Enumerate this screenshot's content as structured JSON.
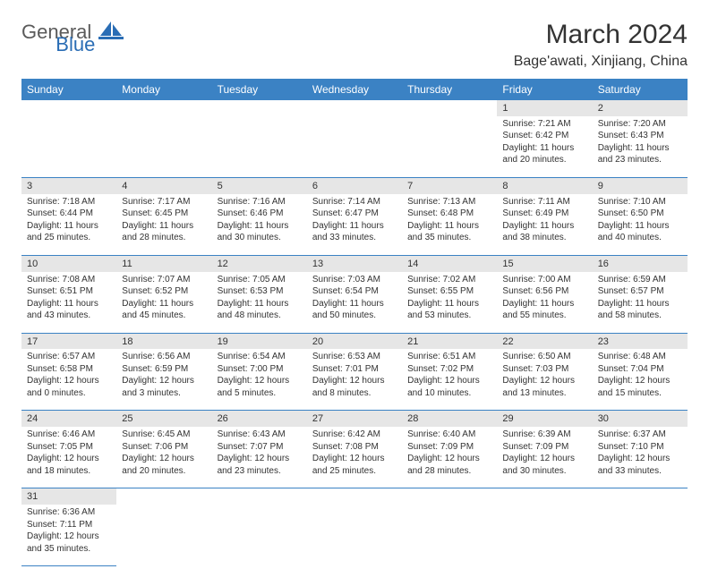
{
  "logo": {
    "text1": "General",
    "text2": "Blue"
  },
  "title": "March 2024",
  "location": "Bage'awati, Xinjiang, China",
  "colors": {
    "header_bg": "#3b82c4",
    "header_text": "#ffffff",
    "daynum_bg": "#e6e6e6",
    "border": "#3b82c4",
    "logo_gray": "#5a5a5a",
    "logo_blue": "#2a6db5"
  },
  "fonts": {
    "title_size": 30,
    "location_size": 16,
    "header_size": 12,
    "cell_size": 10
  },
  "weekdays": [
    "Sunday",
    "Monday",
    "Tuesday",
    "Wednesday",
    "Thursday",
    "Friday",
    "Saturday"
  ],
  "weeks": [
    [
      null,
      null,
      null,
      null,
      null,
      {
        "day": "1",
        "sunrise": "7:21 AM",
        "sunset": "6:42 PM",
        "daylight": "11 hours and 20 minutes."
      },
      {
        "day": "2",
        "sunrise": "7:20 AM",
        "sunset": "6:43 PM",
        "daylight": "11 hours and 23 minutes."
      }
    ],
    [
      {
        "day": "3",
        "sunrise": "7:18 AM",
        "sunset": "6:44 PM",
        "daylight": "11 hours and 25 minutes."
      },
      {
        "day": "4",
        "sunrise": "7:17 AM",
        "sunset": "6:45 PM",
        "daylight": "11 hours and 28 minutes."
      },
      {
        "day": "5",
        "sunrise": "7:16 AM",
        "sunset": "6:46 PM",
        "daylight": "11 hours and 30 minutes."
      },
      {
        "day": "6",
        "sunrise": "7:14 AM",
        "sunset": "6:47 PM",
        "daylight": "11 hours and 33 minutes."
      },
      {
        "day": "7",
        "sunrise": "7:13 AM",
        "sunset": "6:48 PM",
        "daylight": "11 hours and 35 minutes."
      },
      {
        "day": "8",
        "sunrise": "7:11 AM",
        "sunset": "6:49 PM",
        "daylight": "11 hours and 38 minutes."
      },
      {
        "day": "9",
        "sunrise": "7:10 AM",
        "sunset": "6:50 PM",
        "daylight": "11 hours and 40 minutes."
      }
    ],
    [
      {
        "day": "10",
        "sunrise": "7:08 AM",
        "sunset": "6:51 PM",
        "daylight": "11 hours and 43 minutes."
      },
      {
        "day": "11",
        "sunrise": "7:07 AM",
        "sunset": "6:52 PM",
        "daylight": "11 hours and 45 minutes."
      },
      {
        "day": "12",
        "sunrise": "7:05 AM",
        "sunset": "6:53 PM",
        "daylight": "11 hours and 48 minutes."
      },
      {
        "day": "13",
        "sunrise": "7:03 AM",
        "sunset": "6:54 PM",
        "daylight": "11 hours and 50 minutes."
      },
      {
        "day": "14",
        "sunrise": "7:02 AM",
        "sunset": "6:55 PM",
        "daylight": "11 hours and 53 minutes."
      },
      {
        "day": "15",
        "sunrise": "7:00 AM",
        "sunset": "6:56 PM",
        "daylight": "11 hours and 55 minutes."
      },
      {
        "day": "16",
        "sunrise": "6:59 AM",
        "sunset": "6:57 PM",
        "daylight": "11 hours and 58 minutes."
      }
    ],
    [
      {
        "day": "17",
        "sunrise": "6:57 AM",
        "sunset": "6:58 PM",
        "daylight": "12 hours and 0 minutes."
      },
      {
        "day": "18",
        "sunrise": "6:56 AM",
        "sunset": "6:59 PM",
        "daylight": "12 hours and 3 minutes."
      },
      {
        "day": "19",
        "sunrise": "6:54 AM",
        "sunset": "7:00 PM",
        "daylight": "12 hours and 5 minutes."
      },
      {
        "day": "20",
        "sunrise": "6:53 AM",
        "sunset": "7:01 PM",
        "daylight": "12 hours and 8 minutes."
      },
      {
        "day": "21",
        "sunrise": "6:51 AM",
        "sunset": "7:02 PM",
        "daylight": "12 hours and 10 minutes."
      },
      {
        "day": "22",
        "sunrise": "6:50 AM",
        "sunset": "7:03 PM",
        "daylight": "12 hours and 13 minutes."
      },
      {
        "day": "23",
        "sunrise": "6:48 AM",
        "sunset": "7:04 PM",
        "daylight": "12 hours and 15 minutes."
      }
    ],
    [
      {
        "day": "24",
        "sunrise": "6:46 AM",
        "sunset": "7:05 PM",
        "daylight": "12 hours and 18 minutes."
      },
      {
        "day": "25",
        "sunrise": "6:45 AM",
        "sunset": "7:06 PM",
        "daylight": "12 hours and 20 minutes."
      },
      {
        "day": "26",
        "sunrise": "6:43 AM",
        "sunset": "7:07 PM",
        "daylight": "12 hours and 23 minutes."
      },
      {
        "day": "27",
        "sunrise": "6:42 AM",
        "sunset": "7:08 PM",
        "daylight": "12 hours and 25 minutes."
      },
      {
        "day": "28",
        "sunrise": "6:40 AM",
        "sunset": "7:09 PM",
        "daylight": "12 hours and 28 minutes."
      },
      {
        "day": "29",
        "sunrise": "6:39 AM",
        "sunset": "7:09 PM",
        "daylight": "12 hours and 30 minutes."
      },
      {
        "day": "30",
        "sunrise": "6:37 AM",
        "sunset": "7:10 PM",
        "daylight": "12 hours and 33 minutes."
      }
    ],
    [
      {
        "day": "31",
        "sunrise": "6:36 AM",
        "sunset": "7:11 PM",
        "daylight": "12 hours and 35 minutes."
      },
      null,
      null,
      null,
      null,
      null,
      null
    ]
  ],
  "labels": {
    "sunrise": "Sunrise: ",
    "sunset": "Sunset: ",
    "daylight": "Daylight: "
  }
}
